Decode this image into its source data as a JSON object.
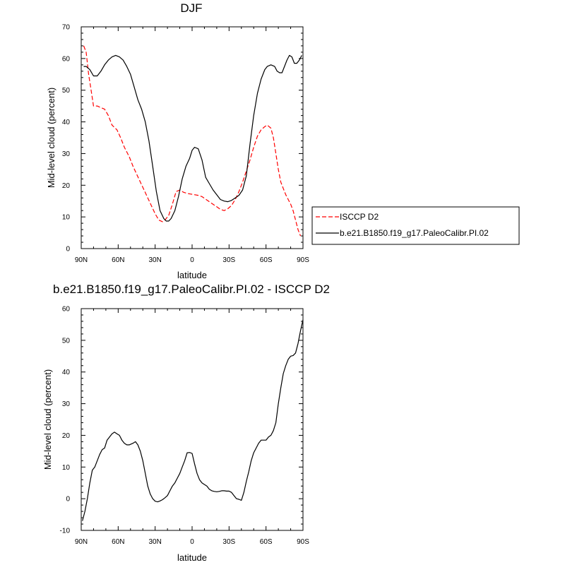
{
  "chart_data": [
    {
      "type": "line",
      "title": "DJF",
      "xlabel": "latitude",
      "ylabel": "Mid-level cloud (percent)",
      "xlim": [
        90,
        -90
      ],
      "ylim": [
        0,
        70
      ],
      "x_ticks": [
        90,
        60,
        30,
        0,
        -30,
        -60,
        -90
      ],
      "x_tick_labels": [
        "90N",
        "60N",
        "30N",
        "0",
        "30S",
        "60S",
        "90S"
      ],
      "y_ticks": [
        0,
        10,
        20,
        30,
        40,
        50,
        60,
        70
      ],
      "y_tick_labels": [
        "0",
        "10",
        "20",
        "30",
        "40",
        "50",
        "60",
        "70"
      ],
      "grid": false,
      "legend_position": "right",
      "series": [
        {
          "name": "ISCCP D2",
          "color": "#ff0000",
          "dash": true,
          "points": [
            [
              88,
              64
            ],
            [
              86,
              62
            ],
            [
              84,
              55
            ],
            [
              82,
              50
            ],
            [
              80,
              45
            ],
            [
              77,
              45
            ],
            [
              74,
              44.5
            ],
            [
              71,
              44
            ],
            [
              68,
              42
            ],
            [
              65,
              39
            ],
            [
              61,
              37.5
            ],
            [
              58,
              35
            ],
            [
              55,
              32
            ],
            [
              51,
              29
            ],
            [
              48,
              26
            ],
            [
              45,
              23.5
            ],
            [
              42,
              21
            ],
            [
              39,
              18.5
            ],
            [
              36,
              16
            ],
            [
              33,
              13.5
            ],
            [
              30,
              11
            ],
            [
              27,
              9
            ],
            [
              24,
              8.5
            ],
            [
              22,
              9
            ],
            [
              19,
              10.5
            ],
            [
              16,
              14
            ],
            [
              13,
              18
            ],
            [
              10,
              18.5
            ],
            [
              7,
              17.8
            ],
            [
              4,
              17.4
            ],
            [
              1,
              17.2
            ],
            [
              -2,
              17
            ],
            [
              -5,
              16.8
            ],
            [
              -8,
              16.4
            ],
            [
              -11,
              15.6
            ],
            [
              -14,
              14.8
            ],
            [
              -17,
              14
            ],
            [
              -20,
              13.2
            ],
            [
              -23,
              12.4
            ],
            [
              -26,
              12
            ],
            [
              -29,
              12.6
            ],
            [
              -32,
              13.6
            ],
            [
              -35,
              15.5
            ],
            [
              -38,
              18
            ],
            [
              -41,
              21
            ],
            [
              -44,
              24.5
            ],
            [
              -47,
              28
            ],
            [
              -50,
              32
            ],
            [
              -53,
              35.5
            ],
            [
              -56,
              37.5
            ],
            [
              -59,
              38.5
            ],
            [
              -61,
              39
            ],
            [
              -64,
              38
            ],
            [
              -66,
              35
            ],
            [
              -68,
              30
            ],
            [
              -70,
              25
            ],
            [
              -72,
              21
            ],
            [
              -74,
              19
            ],
            [
              -76,
              17
            ],
            [
              -78,
              15.5
            ],
            [
              -80,
              14
            ],
            [
              -82,
              12
            ],
            [
              -84,
              9
            ],
            [
              -86,
              6
            ],
            [
              -88,
              4
            ]
          ]
        },
        {
          "name": "b.e21.B1850.f19_g17.PaleoCalibr.PI.02",
          "color": "#000000",
          "dash": false,
          "points": [
            [
              88,
              57.5
            ],
            [
              86,
              57.5
            ],
            [
              83,
              56.5
            ],
            [
              80,
              54.5
            ],
            [
              77,
              54.5
            ],
            [
              74,
              56
            ],
            [
              71,
              58
            ],
            [
              68,
              59.5
            ],
            [
              65,
              60.5
            ],
            [
              62,
              61
            ],
            [
              59,
              60.5
            ],
            [
              56,
              59.5
            ],
            [
              53,
              57.5
            ],
            [
              50,
              55
            ],
            [
              47,
              51
            ],
            [
              44,
              47
            ],
            [
              41,
              44
            ],
            [
              38,
              40
            ],
            [
              35,
              34
            ],
            [
              32,
              26
            ],
            [
              29,
              18
            ],
            [
              26,
              12
            ],
            [
              23,
              9.5
            ],
            [
              21,
              8.7
            ],
            [
              19,
              8.7
            ],
            [
              17,
              9.5
            ],
            [
              14,
              12
            ],
            [
              11,
              16.5
            ],
            [
              8,
              22
            ],
            [
              5,
              26
            ],
            [
              2,
              28.5
            ],
            [
              0,
              31
            ],
            [
              -2,
              32
            ],
            [
              -5,
              31.5
            ],
            [
              -8,
              28
            ],
            [
              -11,
              22.5
            ],
            [
              -14,
              20.5
            ],
            [
              -17,
              18.5
            ],
            [
              -20,
              17
            ],
            [
              -23,
              15.5
            ],
            [
              -26,
              15
            ],
            [
              -29,
              14.8
            ],
            [
              -32,
              15.2
            ],
            [
              -35,
              16
            ],
            [
              -38,
              16.8
            ],
            [
              -41,
              18.5
            ],
            [
              -44,
              23
            ],
            [
              -47,
              33
            ],
            [
              -50,
              42
            ],
            [
              -53,
              49
            ],
            [
              -56,
              53.5
            ],
            [
              -59,
              56.5
            ],
            [
              -61,
              57.5
            ],
            [
              -64,
              58
            ],
            [
              -67,
              57.5
            ],
            [
              -69,
              56
            ],
            [
              -71,
              55.5
            ],
            [
              -73,
              55.5
            ],
            [
              -75,
              57.5
            ],
            [
              -77,
              59.5
            ],
            [
              -79,
              61
            ],
            [
              -81,
              60.5
            ],
            [
              -83,
              58.5
            ],
            [
              -85,
              58.5
            ],
            [
              -87,
              59.5
            ],
            [
              -89,
              61
            ]
          ]
        }
      ]
    },
    {
      "type": "line",
      "title": "b.e21.B1850.f19_g17.PaleoCalibr.PI.02 - ISCCP D2",
      "xlabel": "latitude",
      "ylabel": "Mid-level cloud (percent)",
      "xlim": [
        90,
        -90
      ],
      "ylim": [
        -10,
        60
      ],
      "x_ticks": [
        90,
        60,
        30,
        0,
        -30,
        -60,
        -90
      ],
      "x_tick_labels": [
        "90N",
        "60N",
        "30N",
        "0",
        "30S",
        "60S",
        "90S"
      ],
      "y_ticks": [
        -10,
        0,
        10,
        20,
        30,
        40,
        50,
        60
      ],
      "y_tick_labels": [
        "-10",
        "0",
        "10",
        "20",
        "30",
        "40",
        "50",
        "60"
      ],
      "grid": false,
      "series": [
        {
          "color": "#000000",
          "dash": false,
          "points": [
            [
              89,
              -7
            ],
            [
              87,
              -4
            ],
            [
              85,
              0
            ],
            [
              83,
              5
            ],
            [
              81,
              9
            ],
            [
              79,
              10
            ],
            [
              77,
              12
            ],
            [
              75,
              14
            ],
            [
              73,
              15.5
            ],
            [
              71,
              16
            ],
            [
              69,
              18.5
            ],
            [
              67,
              19.5
            ],
            [
              65,
              20.5
            ],
            [
              63,
              21
            ],
            [
              61,
              20.5
            ],
            [
              59,
              20
            ],
            [
              57,
              18.5
            ],
            [
              55,
              17.5
            ],
            [
              53,
              17
            ],
            [
              51,
              17
            ],
            [
              48,
              17.5
            ],
            [
              46,
              18
            ],
            [
              44,
              17
            ],
            [
              42,
              15
            ],
            [
              40,
              12
            ],
            [
              38,
              8
            ],
            [
              36,
              4
            ],
            [
              34,
              1.5
            ],
            [
              32,
              0
            ],
            [
              30,
              -0.8
            ],
            [
              28,
              -1
            ],
            [
              26,
              -0.7
            ],
            [
              24,
              -0.3
            ],
            [
              22,
              0.3
            ],
            [
              20,
              1
            ],
            [
              18,
              2.5
            ],
            [
              16,
              4
            ],
            [
              14,
              5
            ],
            [
              12,
              6.5
            ],
            [
              10,
              8
            ],
            [
              8,
              10
            ],
            [
              6,
              12
            ],
            [
              4,
              14.5
            ],
            [
              2,
              14.6
            ],
            [
              0,
              14.3
            ],
            [
              -2,
              11
            ],
            [
              -4,
              8
            ],
            [
              -6,
              6
            ],
            [
              -8,
              5
            ],
            [
              -10,
              4.5
            ],
            [
              -12,
              4
            ],
            [
              -14,
              3
            ],
            [
              -16,
              2.5
            ],
            [
              -18,
              2.3
            ],
            [
              -20,
              2.2
            ],
            [
              -22,
              2.3
            ],
            [
              -24,
              2.5
            ],
            [
              -26,
              2.5
            ],
            [
              -28,
              2.4
            ],
            [
              -30,
              2.4
            ],
            [
              -32,
              2
            ],
            [
              -34,
              1
            ],
            [
              -36,
              0
            ],
            [
              -38,
              -0.2
            ],
            [
              -40,
              -0.5
            ],
            [
              -42,
              2
            ],
            [
              -44,
              5.5
            ],
            [
              -46,
              8.5
            ],
            [
              -48,
              12
            ],
            [
              -50,
              14.5
            ],
            [
              -52,
              16
            ],
            [
              -54,
              17.5
            ],
            [
              -56,
              18.5
            ],
            [
              -58,
              18.5
            ],
            [
              -60,
              18.5
            ],
            [
              -62,
              19.5
            ],
            [
              -64,
              20
            ],
            [
              -66,
              21.5
            ],
            [
              -68,
              24
            ],
            [
              -70,
              30
            ],
            [
              -72,
              35
            ],
            [
              -74,
              39.5
            ],
            [
              -76,
              42
            ],
            [
              -78,
              44
            ],
            [
              -80,
              45
            ],
            [
              -82,
              45.2
            ],
            [
              -84,
              46
            ],
            [
              -86,
              49
            ],
            [
              -88,
              53
            ],
            [
              -90,
              56.5
            ]
          ]
        }
      ]
    }
  ]
}
